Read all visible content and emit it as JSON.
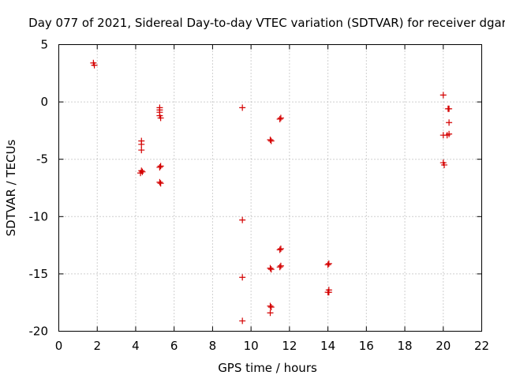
{
  "chart_data": {
    "type": "scatter",
    "title": "Day 077 of 2021, Sidereal Day-to-day VTEC variation (SDTVAR) for receiver dgar",
    "xlabel": "GPS time / hours",
    "ylabel": "SDTVAR / TECUs",
    "xlim": [
      0,
      22
    ],
    "ylim": [
      -20,
      5
    ],
    "xticks": [
      0,
      2,
      4,
      6,
      8,
      10,
      12,
      14,
      16,
      18,
      20,
      22
    ],
    "yticks": [
      5,
      0,
      -5,
      -10,
      -15,
      -20
    ],
    "grid": true,
    "marker": "+",
    "marker_color": "#d40000",
    "series": [
      {
        "name": "SDTVAR",
        "points": [
          [
            1.8,
            3.4
          ],
          [
            1.85,
            3.2
          ],
          [
            4.3,
            -3.4
          ],
          [
            4.3,
            -3.7
          ],
          [
            4.3,
            -4.2
          ],
          [
            4.3,
            -6.0
          ],
          [
            4.35,
            -6.1
          ],
          [
            4.25,
            -6.2
          ],
          [
            5.25,
            -0.5
          ],
          [
            5.25,
            -0.7
          ],
          [
            5.25,
            -0.9
          ],
          [
            5.25,
            -1.2
          ],
          [
            5.3,
            -1.4
          ],
          [
            5.25,
            -5.7
          ],
          [
            5.3,
            -5.6
          ],
          [
            5.25,
            -7.0
          ],
          [
            5.3,
            -7.1
          ],
          [
            9.55,
            -0.5
          ],
          [
            9.55,
            -10.3
          ],
          [
            9.55,
            -15.3
          ],
          [
            9.55,
            -19.1
          ],
          [
            11.0,
            -3.3
          ],
          [
            11.05,
            -3.4
          ],
          [
            11.0,
            -14.5
          ],
          [
            11.05,
            -14.6
          ],
          [
            11.0,
            -17.8
          ],
          [
            11.05,
            -17.9
          ],
          [
            11.0,
            -18.4
          ],
          [
            11.55,
            -1.4
          ],
          [
            11.5,
            -1.5
          ],
          [
            11.55,
            -12.8
          ],
          [
            11.5,
            -12.9
          ],
          [
            11.55,
            -14.3
          ],
          [
            11.5,
            -14.4
          ],
          [
            14.05,
            -14.1
          ],
          [
            14.0,
            -14.2
          ],
          [
            14.05,
            -16.4
          ],
          [
            14.05,
            -16.6
          ],
          [
            14.0,
            -16.6
          ],
          [
            20.0,
            0.6
          ],
          [
            20.25,
            -0.6
          ],
          [
            20.3,
            -0.6
          ],
          [
            20.3,
            -1.8
          ],
          [
            20.3,
            -2.8
          ],
          [
            20.2,
            -2.9
          ],
          [
            20.0,
            -2.9
          ],
          [
            20.0,
            -5.3
          ],
          [
            20.05,
            -5.5
          ]
        ]
      }
    ]
  }
}
